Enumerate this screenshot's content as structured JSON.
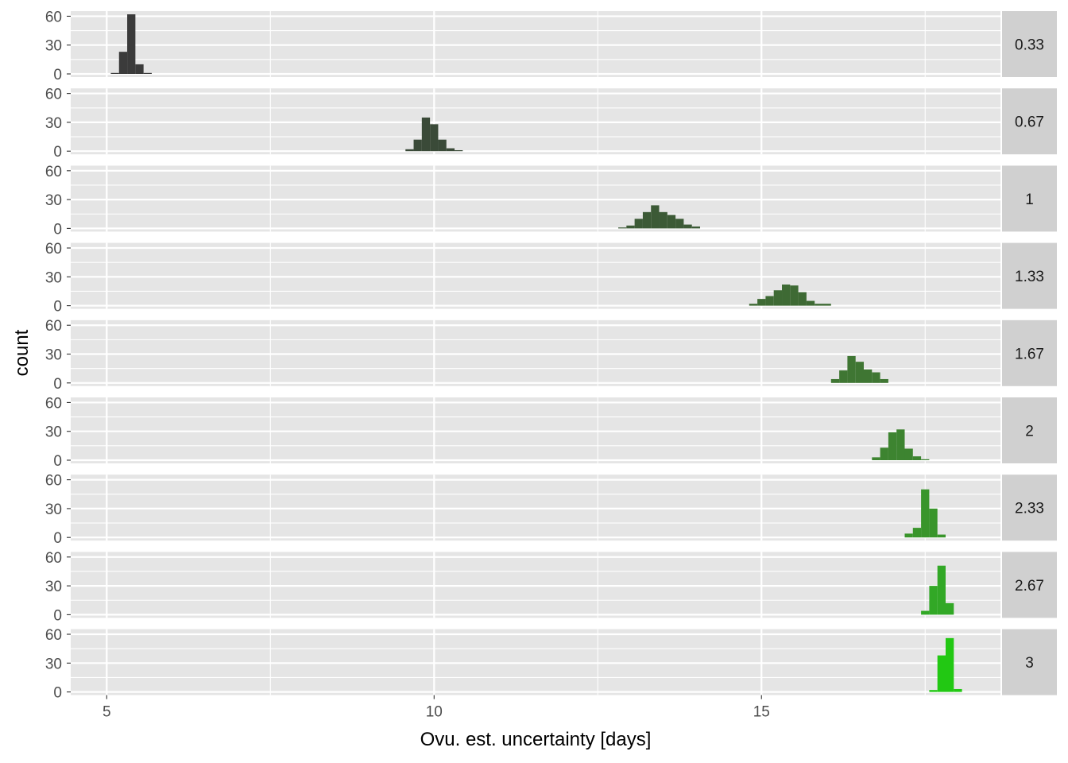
{
  "chart_data": {
    "type": "bar",
    "subtype": "faceted-histogram",
    "xlabel": "Ovu. est. uncertainty [days]",
    "ylabel": "count",
    "x_ticks": [
      5,
      10,
      15
    ],
    "y_ticks": [
      0,
      30,
      60
    ],
    "xlim": [
      4.45,
      18.65
    ],
    "ylim": [
      0,
      62
    ],
    "bin_width": 0.125,
    "grid": true,
    "legend": "none",
    "colors": {
      "panel_bg": "#e5e5e5",
      "grid": "#ffffff",
      "strip_bg": "#d0d0d0"
    },
    "facets": [
      {
        "label": "0.33",
        "color": "#3b3b3b",
        "bins": [
          {
            "x": 5.125,
            "count": 1
          },
          {
            "x": 5.25,
            "count": 23
          },
          {
            "x": 5.375,
            "count": 62
          },
          {
            "x": 5.5,
            "count": 10
          },
          {
            "x": 5.625,
            "count": 1
          }
        ]
      },
      {
        "label": "0.67",
        "color": "#3a4a38",
        "bins": [
          {
            "x": 9.625,
            "count": 2
          },
          {
            "x": 9.75,
            "count": 12
          },
          {
            "x": 9.875,
            "count": 35
          },
          {
            "x": 10.0,
            "count": 28
          },
          {
            "x": 10.125,
            "count": 12
          },
          {
            "x": 10.25,
            "count": 3
          },
          {
            "x": 10.375,
            "count": 1
          }
        ]
      },
      {
        "label": "1",
        "color": "#3c5a36",
        "bins": [
          {
            "x": 12.875,
            "count": 1
          },
          {
            "x": 13.0,
            "count": 3
          },
          {
            "x": 13.125,
            "count": 10
          },
          {
            "x": 13.25,
            "count": 17
          },
          {
            "x": 13.375,
            "count": 24
          },
          {
            "x": 13.5,
            "count": 17
          },
          {
            "x": 13.625,
            "count": 14
          },
          {
            "x": 13.75,
            "count": 10
          },
          {
            "x": 13.875,
            "count": 4
          },
          {
            "x": 14.0,
            "count": 2
          }
        ]
      },
      {
        "label": "1.33",
        "color": "#3e6a34",
        "bins": [
          {
            "x": 14.875,
            "count": 2
          },
          {
            "x": 15.0,
            "count": 7
          },
          {
            "x": 15.125,
            "count": 10
          },
          {
            "x": 15.25,
            "count": 16
          },
          {
            "x": 15.375,
            "count": 22
          },
          {
            "x": 15.5,
            "count": 21
          },
          {
            "x": 15.625,
            "count": 14
          },
          {
            "x": 15.75,
            "count": 5
          },
          {
            "x": 15.875,
            "count": 2
          },
          {
            "x": 16.0,
            "count": 2
          }
        ]
      },
      {
        "label": "1.67",
        "color": "#3f7633",
        "bins": [
          {
            "x": 16.125,
            "count": 4
          },
          {
            "x": 16.25,
            "count": 13
          },
          {
            "x": 16.375,
            "count": 28
          },
          {
            "x": 16.5,
            "count": 22
          },
          {
            "x": 16.625,
            "count": 14
          },
          {
            "x": 16.75,
            "count": 11
          },
          {
            "x": 16.875,
            "count": 4
          }
        ]
      },
      {
        "label": "2",
        "color": "#3d8430",
        "bins": [
          {
            "x": 16.75,
            "count": 3
          },
          {
            "x": 16.875,
            "count": 13
          },
          {
            "x": 17.0,
            "count": 29
          },
          {
            "x": 17.125,
            "count": 32
          },
          {
            "x": 17.25,
            "count": 12
          },
          {
            "x": 17.375,
            "count": 4
          },
          {
            "x": 17.5,
            "count": 1
          }
        ]
      },
      {
        "label": "2.33",
        "color": "#39952b",
        "bins": [
          {
            "x": 17.25,
            "count": 4
          },
          {
            "x": 17.375,
            "count": 10
          },
          {
            "x": 17.5,
            "count": 50
          },
          {
            "x": 17.625,
            "count": 30
          },
          {
            "x": 17.75,
            "count": 3
          }
        ]
      },
      {
        "label": "2.67",
        "color": "#32a826",
        "bins": [
          {
            "x": 17.5,
            "count": 4
          },
          {
            "x": 17.625,
            "count": 30
          },
          {
            "x": 17.75,
            "count": 51
          },
          {
            "x": 17.875,
            "count": 12
          }
        ]
      },
      {
        "label": "3",
        "color": "#22c813",
        "bins": [
          {
            "x": 17.625,
            "count": 2
          },
          {
            "x": 17.75,
            "count": 38
          },
          {
            "x": 17.875,
            "count": 56
          },
          {
            "x": 18.0,
            "count": 3
          }
        ]
      }
    ]
  }
}
